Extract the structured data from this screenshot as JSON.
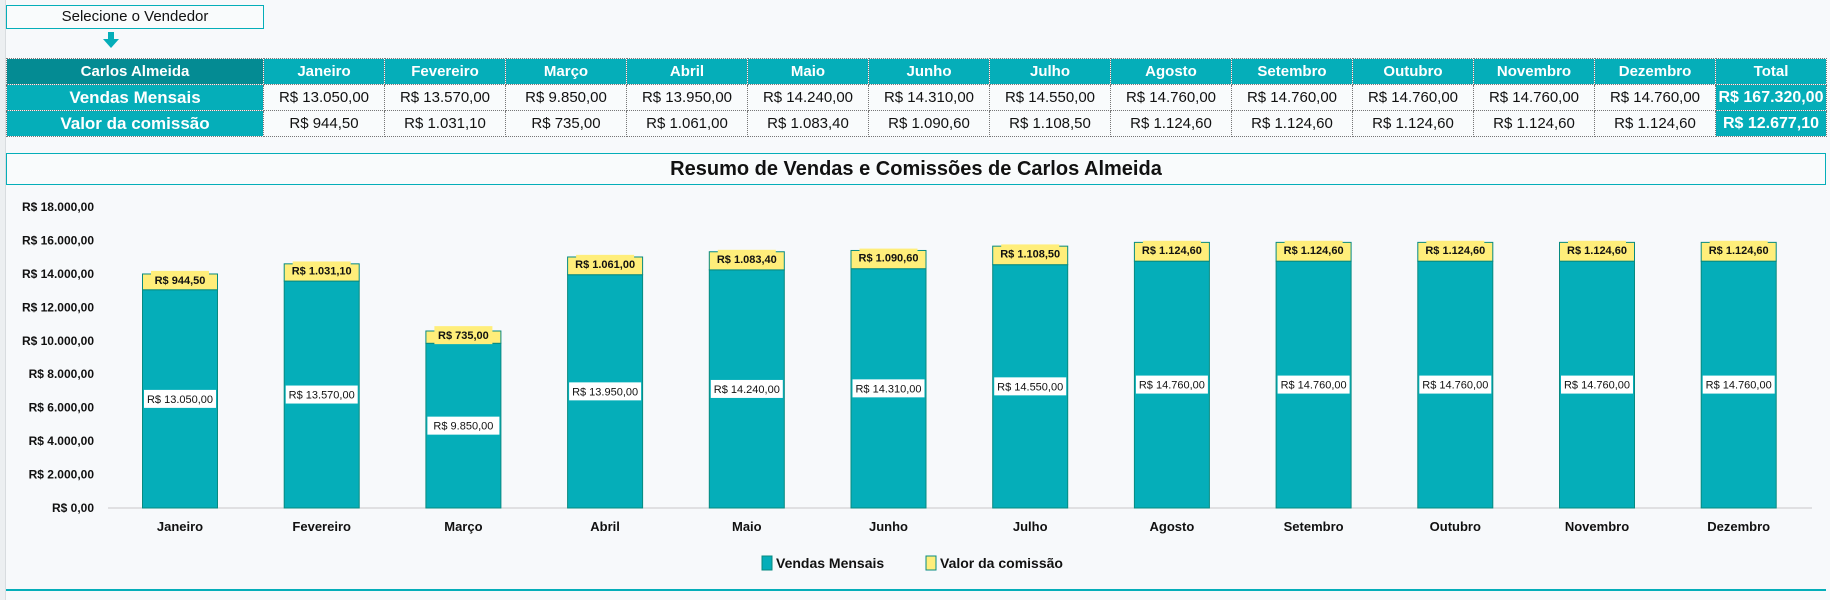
{
  "selector_label": "Selecione o Vendedor",
  "table": {
    "selected_seller": "Carlos Almeida",
    "months": [
      "Janeiro",
      "Fevereiro",
      "Março",
      "Abril",
      "Maio",
      "Junho",
      "Julho",
      "Agosto",
      "Setembro",
      "Outubro",
      "Novembro",
      "Dezembro"
    ],
    "total_header": "Total",
    "rows": [
      {
        "label": "Vendas Mensais",
        "values": [
          "R$ 13.050,00",
          "R$ 13.570,00",
          "R$ 9.850,00",
          "R$ 13.950,00",
          "R$ 14.240,00",
          "R$ 14.310,00",
          "R$ 14.550,00",
          "R$ 14.760,00",
          "R$ 14.760,00",
          "R$ 14.760,00",
          "R$ 14.760,00",
          "R$ 14.760,00"
        ],
        "total": "R$ 167.320,00"
      },
      {
        "label": "Valor da comissão",
        "values": [
          "R$ 944,50",
          "R$ 1.031,10",
          "R$ 735,00",
          "R$ 1.061,00",
          "R$ 1.083,40",
          "R$ 1.090,60",
          "R$ 1.108,50",
          "R$ 1.124,60",
          "R$ 1.124,60",
          "R$ 1.124,60",
          "R$ 1.124,60",
          "R$ 1.124,60"
        ],
        "total": "R$ 12.677,10"
      }
    ]
  },
  "colors": {
    "sales": "#05aeb9",
    "commission": "#ffee7a",
    "header_dark": "#048b93"
  },
  "chart_data": {
    "type": "bar",
    "stacked": true,
    "title": "Resumo de Vendas e Comissões de Carlos Almeida",
    "categories": [
      "Janeiro",
      "Fevereiro",
      "Março",
      "Abril",
      "Maio",
      "Junho",
      "Julho",
      "Agosto",
      "Setembro",
      "Outubro",
      "Novembro",
      "Dezembro"
    ],
    "series": [
      {
        "name": "Vendas Mensais",
        "values": [
          13050,
          13570,
          9850,
          13950,
          14240,
          14310,
          14550,
          14760,
          14760,
          14760,
          14760,
          14760
        ],
        "labels": [
          "R$ 13.050,00",
          "R$ 13.570,00",
          "R$ 9.850,00",
          "R$ 13.950,00",
          "R$ 14.240,00",
          "R$ 14.310,00",
          "R$ 14.550,00",
          "R$ 14.760,00",
          "R$ 14.760,00",
          "R$ 14.760,00",
          "R$ 14.760,00",
          "R$ 14.760,00"
        ]
      },
      {
        "name": "Valor da comissão",
        "values": [
          944.5,
          1031.1,
          735,
          1061,
          1083.4,
          1090.6,
          1108.5,
          1124.6,
          1124.6,
          1124.6,
          1124.6,
          1124.6
        ],
        "labels": [
          "R$ 944,50",
          "R$ 1.031,10",
          "R$ 735,00",
          "R$ 1.061,00",
          "R$ 1.083,40",
          "R$ 1.090,60",
          "R$ 1.108,50",
          "R$ 1.124,60",
          "R$ 1.124,60",
          "R$ 1.124,60",
          "R$ 1.124,60",
          "R$ 1.124,60"
        ]
      }
    ],
    "yticks": [
      "R$ 0,00",
      "R$ 2.000,00",
      "R$ 4.000,00",
      "R$ 6.000,00",
      "R$ 8.000,00",
      "R$ 10.000,00",
      "R$ 12.000,00",
      "R$ 14.000,00",
      "R$ 16.000,00",
      "R$ 18.000,00"
    ],
    "ylim": [
      0,
      18000
    ],
    "grid": false,
    "legend": "bottom"
  }
}
